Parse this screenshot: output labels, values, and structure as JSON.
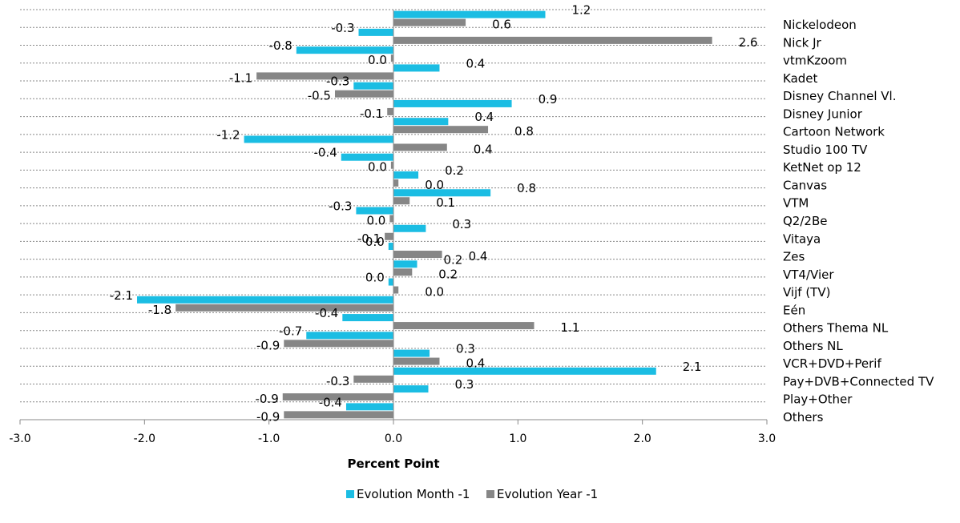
{
  "chart_data": {
    "type": "bar",
    "orientation": "horizontal",
    "xlabel": "Percent Point",
    "xlim": [
      -3.0,
      3.0
    ],
    "x_ticks": [
      "-3.0",
      "-2.0",
      "-1.0",
      "0.0",
      "1.0",
      "2.0",
      "3.0"
    ],
    "grid": "horizontal dashed",
    "legend_position": "bottom",
    "categories": [
      "Nickelodeon",
      "Nick Jr",
      "vtmKzoom",
      "Kadet",
      "Disney Channel Vl.",
      "Disney Junior",
      "Cartoon Network",
      "Studio 100 TV",
      "KetNet op 12",
      "Canvas",
      "VTM",
      "Q2/2Be",
      "Vitaya",
      "Zes",
      "VT4/Vier",
      "Vijf (TV)",
      "Eén",
      "Others Thema NL",
      "Others NL",
      "VCR+DVD+Perif",
      "Pay+DVB+Connected TV",
      "Play+Other",
      "Others"
    ],
    "series": [
      {
        "name": "Evolution Month -1",
        "color": "#1bbde3",
        "values": [
          1.22,
          -0.28,
          -0.78,
          0.37,
          -0.32,
          0.95,
          0.44,
          -1.2,
          -0.42,
          0.2,
          0.78,
          -0.3,
          0.26,
          -0.04,
          0.19,
          -0.04,
          -2.06,
          -0.41,
          -0.7,
          0.29,
          2.11,
          0.28,
          -0.38
        ],
        "labels": [
          "1.2",
          "-0.3",
          "-0.8",
          "0.4",
          "-0.3",
          "0.9",
          "0.4",
          "-1.2",
          "-0.4",
          "0.2",
          "0.8",
          "-0.3",
          "0.3",
          "0.0",
          "0.2",
          "0.0",
          "-2.1",
          "-0.4",
          "-0.7",
          "0.3",
          "2.1",
          "0.3",
          "-0.4"
        ]
      },
      {
        "name": "Evolution Year -1",
        "color": "#868686",
        "values": [
          0.58,
          2.56,
          -0.02,
          -1.1,
          -0.47,
          -0.05,
          0.76,
          0.43,
          -0.02,
          0.04,
          0.13,
          -0.03,
          -0.07,
          0.39,
          0.15,
          0.04,
          -1.75,
          1.13,
          -0.88,
          0.37,
          -0.32,
          -0.89,
          -0.88
        ],
        "labels": [
          "0.6",
          "2.6",
          "0.0",
          "-1.1",
          "-0.5",
          "-0.1",
          "0.8",
          "0.4",
          "0.0",
          "0.0",
          "0.1",
          "0.0",
          "-0.1",
          "0.4",
          "0.2",
          "0.0",
          "-1.8",
          "1.1",
          "-0.9",
          "0.4",
          "-0.3",
          "-0.9",
          "-0.9"
        ]
      }
    ]
  }
}
